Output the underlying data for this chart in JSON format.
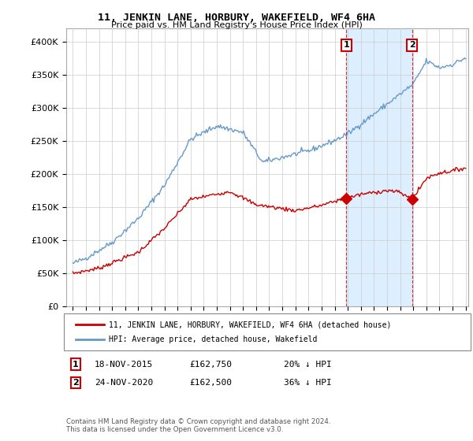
{
  "title": "11, JENKIN LANE, HORBURY, WAKEFIELD, WF4 6HA",
  "subtitle": "Price paid vs. HM Land Registry's House Price Index (HPI)",
  "legend_line1": "11, JENKIN LANE, HORBURY, WAKEFIELD, WF4 6HA (detached house)",
  "legend_line2": "HPI: Average price, detached house, Wakefield",
  "footnote": "Contains HM Land Registry data © Crown copyright and database right 2024.\nThis data is licensed under the Open Government Licence v3.0.",
  "transaction1_label": "1",
  "transaction1_date": "18-NOV-2015",
  "transaction1_price": "£162,750",
  "transaction1_hpi": "20% ↓ HPI",
  "transaction1_year": 2015.88,
  "transaction1_value": 162750,
  "transaction2_label": "2",
  "transaction2_date": "24-NOV-2020",
  "transaction2_price": "£162,500",
  "transaction2_hpi": "36% ↓ HPI",
  "transaction2_year": 2020.9,
  "transaction2_value": 162500,
  "red_color": "#cc0000",
  "blue_color": "#6699cc",
  "shade_color": "#ddeeff",
  "background_color": "#ffffff",
  "grid_color": "#cccccc",
  "ylim": [
    0,
    420000
  ],
  "xlim": [
    1994.5,
    2025.2
  ],
  "yticks": [
    0,
    50000,
    100000,
    150000,
    200000,
    250000,
    300000,
    350000,
    400000
  ],
  "xticks": [
    1995,
    1996,
    1997,
    1998,
    1999,
    2000,
    2001,
    2002,
    2003,
    2004,
    2005,
    2006,
    2007,
    2008,
    2009,
    2010,
    2011,
    2012,
    2013,
    2014,
    2015,
    2016,
    2017,
    2018,
    2019,
    2020,
    2021,
    2022,
    2023,
    2024,
    2025
  ]
}
